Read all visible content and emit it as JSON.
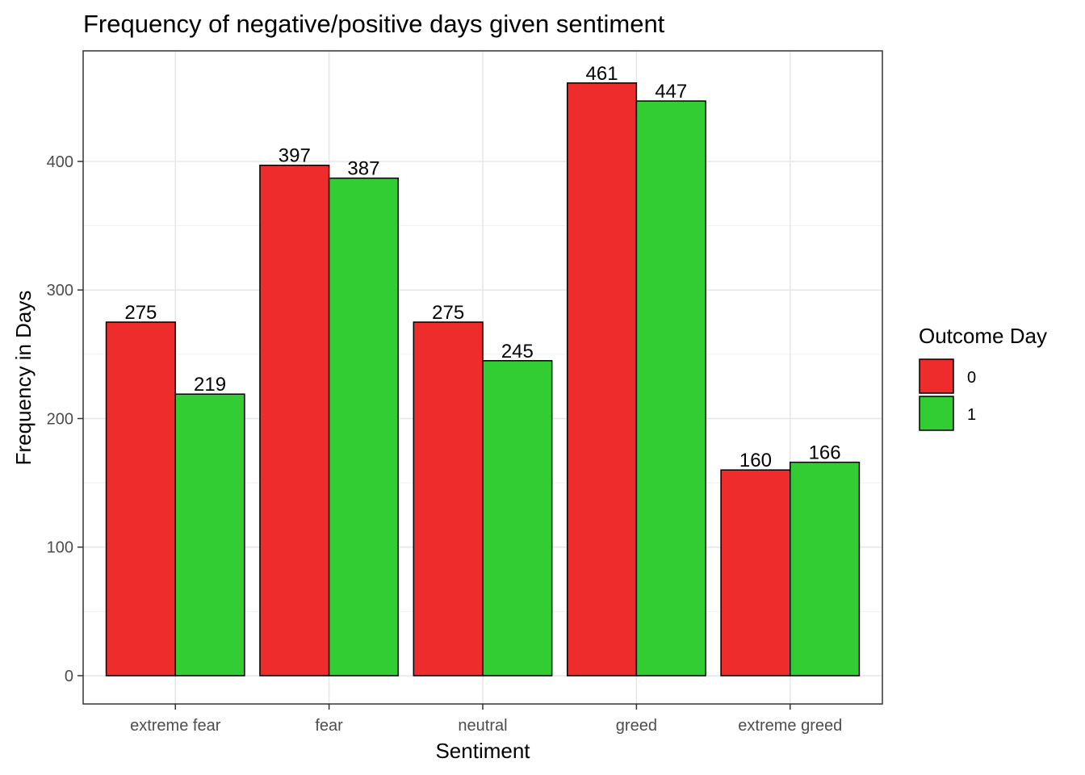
{
  "chart_data": {
    "type": "bar",
    "title": "Frequency of negative/positive days given sentiment",
    "xlabel": "Sentiment",
    "ylabel": "Frequency in Days",
    "categories": [
      "extreme fear",
      "fear",
      "neutral",
      "greed",
      "extreme greed"
    ],
    "series": [
      {
        "name": "0",
        "color": "#EE2C2C",
        "values": [
          275,
          397,
          275,
          461,
          160
        ]
      },
      {
        "name": "1",
        "color": "#32CD32",
        "values": [
          219,
          387,
          245,
          447,
          166
        ]
      }
    ],
    "ylim": [
      -22,
      486
    ],
    "yticks": [
      0,
      100,
      200,
      300,
      400
    ],
    "yticklabels": [
      "0",
      "100",
      "200",
      "300",
      "400"
    ],
    "grid": true,
    "legend": {
      "title": "Outcome Day",
      "position": "right"
    }
  }
}
